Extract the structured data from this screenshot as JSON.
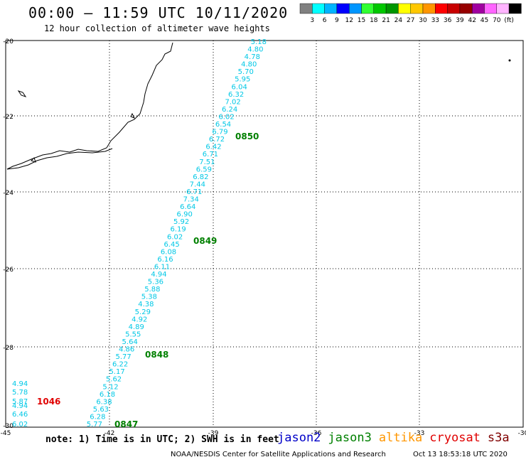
{
  "header": {
    "title": "00:00 – 11:59 UTC 10/11/2020",
    "subtitle": "12 hour collection of altimeter wave heights"
  },
  "legend": {
    "colors": [
      "#808080",
      "#00ffff",
      "#00b4ff",
      "#0000ff",
      "#0096ff",
      "#32ff32",
      "#00c800",
      "#009600",
      "#ffff00",
      "#ffc800",
      "#ff9600",
      "#ff0000",
      "#c80000",
      "#960000",
      "#a000a0",
      "#ff64ff",
      "#ffb4ff",
      "#000000"
    ],
    "labels": [
      "3",
      "6",
      "9",
      "12",
      "15",
      "18",
      "21",
      "24",
      "27",
      "30",
      "33",
      "36",
      "39",
      "42",
      "45",
      "70",
      "(ft)"
    ]
  },
  "axes": {
    "lat_labels": [
      "-20",
      "-22",
      "-24",
      "-26",
      "-28",
      "-30"
    ],
    "lon_labels": [
      "-45",
      "-42",
      "-39",
      "-36",
      "-33",
      "-30"
    ]
  },
  "track": {
    "color": "#00c8e6",
    "values": [
      "5.18",
      "4.80",
      "4.78",
      "4.80",
      "5.70",
      "5.95",
      "6.04",
      "6.32",
      "7.02",
      "6.24",
      "6.02",
      "6.54",
      "6.79",
      "6.72",
      "6.42",
      "6.71",
      "7.51",
      "6.59",
      "6.82",
      "7.44",
      "6.71",
      "7.34",
      "6.64",
      "6.90",
      "5.92",
      "6.19",
      "6.02",
      "6.45",
      "6.08",
      "6.16",
      "6.11",
      "4.94",
      "5.36",
      "5.88",
      "5.38",
      "4.38",
      "5.29",
      "4.92",
      "4.89",
      "5.55",
      "5.64",
      "4.86",
      "5.77",
      "6.22",
      "5.17",
      "5.62",
      "5.12",
      "6.18",
      "6.38",
      "5.63",
      "6.28",
      "5.77"
    ]
  },
  "times": [
    {
      "label": "0850",
      "color": "#008000"
    },
    {
      "label": "0849",
      "color": "#008000"
    },
    {
      "label": "0848",
      "color": "#008000"
    },
    {
      "label": "0847",
      "color": "#008000"
    },
    {
      "label": "1046",
      "color": "#e00000"
    }
  ],
  "cryosat_values": [
    "4.94",
    "5.78",
    "5.87",
    "4.94",
    "6.46",
    "6.02"
  ],
  "footer": {
    "note": "note: 1) Time is in UTC; 2) SWH is in feet",
    "satellites": [
      {
        "name": "jason2",
        "color": "#0000c8"
      },
      {
        "name": "jason3",
        "color": "#008000"
      },
      {
        "name": "altika",
        "color": "#ff9600"
      },
      {
        "name": "cryosat",
        "color": "#e00000"
      },
      {
        "name": "s3a",
        "color": "#800000"
      }
    ],
    "credit": "NOAA/NESDIS Center for Satellite Applications and Research",
    "timestamp": "Oct 13 18:53:18 UTC 2020"
  }
}
